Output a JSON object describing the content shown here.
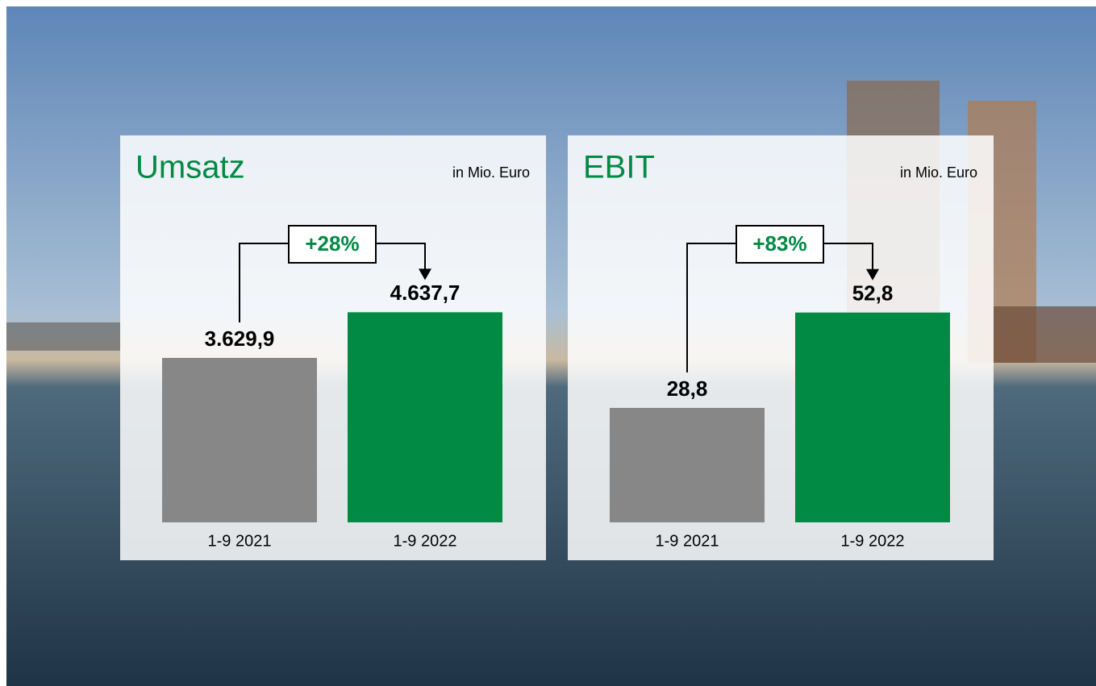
{
  "chart_data": [
    {
      "type": "bar",
      "title": "Umsatz",
      "unit_label": "in Mio. Euro",
      "annotation": "+28%",
      "categories": [
        "1-9 2021",
        "1-9 2022"
      ],
      "values": [
        3629.9,
        4637.7
      ],
      "value_labels": [
        "3.629,9",
        "4.637,7"
      ],
      "colors": [
        "#878787",
        "#008a44"
      ],
      "ylim": [
        0,
        5000
      ]
    },
    {
      "type": "bar",
      "title": "EBIT",
      "unit_label": "in Mio. Euro",
      "annotation": "+83%",
      "categories": [
        "1-9 2021",
        "1-9 2022"
      ],
      "values": [
        28.8,
        52.8
      ],
      "value_labels": [
        "28,8",
        "52,8"
      ],
      "colors": [
        "#878787",
        "#008a44"
      ],
      "ylim": [
        0,
        57
      ]
    }
  ]
}
